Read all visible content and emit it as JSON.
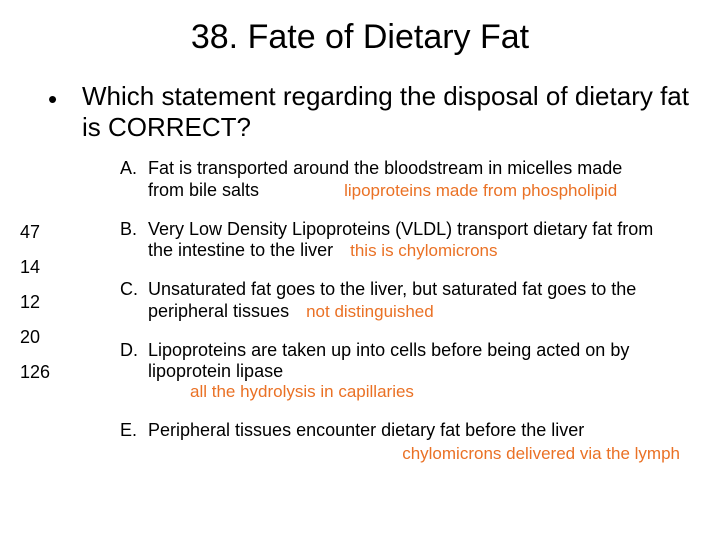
{
  "title": "38. Fate of Dietary Fat",
  "bullet": "•",
  "question": "Which statement regarding the disposal of dietary fat is CORRECT?",
  "side_numbers": [
    "47",
    "14",
    "12",
    "20",
    "126"
  ],
  "options": {
    "a": {
      "letter": "A.",
      "line1": "Fat is transported around the bloodstream in micelles made",
      "line2": "from bile salts",
      "annot": "lipoproteins made from phospholipid"
    },
    "b": {
      "letter": "B.",
      "line1": "Very Low Density Lipoproteins (VLDL) transport dietary fat from",
      "line2": "the intestine to the liver",
      "annot": "this is chylomicrons"
    },
    "c": {
      "letter": "C.",
      "line1": "Unsaturated fat goes to the liver, but saturated fat goes to the",
      "line2": "peripheral tissues",
      "annot": "not distinguished"
    },
    "d": {
      "letter": "D.",
      "line1": "Lipoproteins are taken up into cells before being acted on by",
      "line2": "lipoprotein lipase",
      "annot": "all the hydrolysis in capillaries"
    },
    "e": {
      "letter": "E.",
      "line1": "Peripheral tissues encounter dietary fat before the liver",
      "annot": "chylomicrons delivered via the lymph"
    }
  },
  "colors": {
    "text": "#000000",
    "annotation": "#ea7125",
    "background": "#ffffff"
  }
}
